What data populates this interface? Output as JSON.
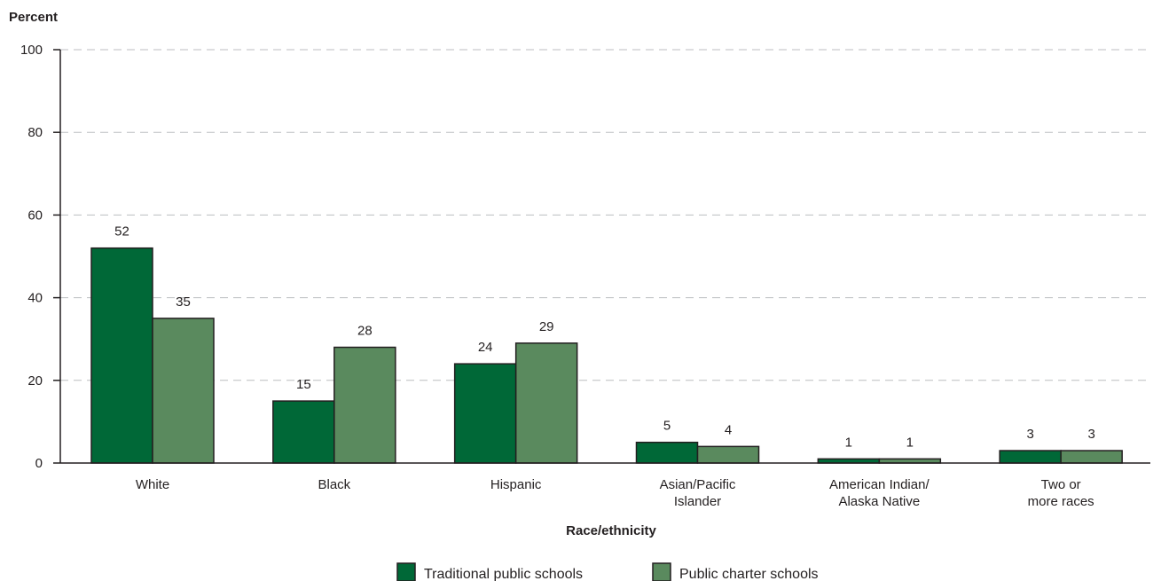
{
  "chart_data": {
    "type": "bar",
    "ylabel": "Percent",
    "xlabel": "Race/ethnicity",
    "ylim": [
      0,
      100
    ],
    "yticks": [
      0,
      20,
      40,
      60,
      80,
      100
    ],
    "grid": "horizontal dashed",
    "legend_position": "bottom-center",
    "categories": [
      [
        "White"
      ],
      [
        "Black"
      ],
      [
        "Hispanic"
      ],
      [
        "Asian/Pacific",
        "Islander"
      ],
      [
        "American Indian/",
        "Alaska Native"
      ],
      [
        "Two or",
        "more races"
      ]
    ],
    "series": [
      {
        "name": "Traditional public schools",
        "color": "#006837",
        "values": [
          52,
          15,
          24,
          5,
          1,
          3
        ]
      },
      {
        "name": "Public charter schools",
        "color": "#5a8a5e",
        "values": [
          35,
          28,
          29,
          4,
          1,
          3
        ]
      }
    ]
  }
}
